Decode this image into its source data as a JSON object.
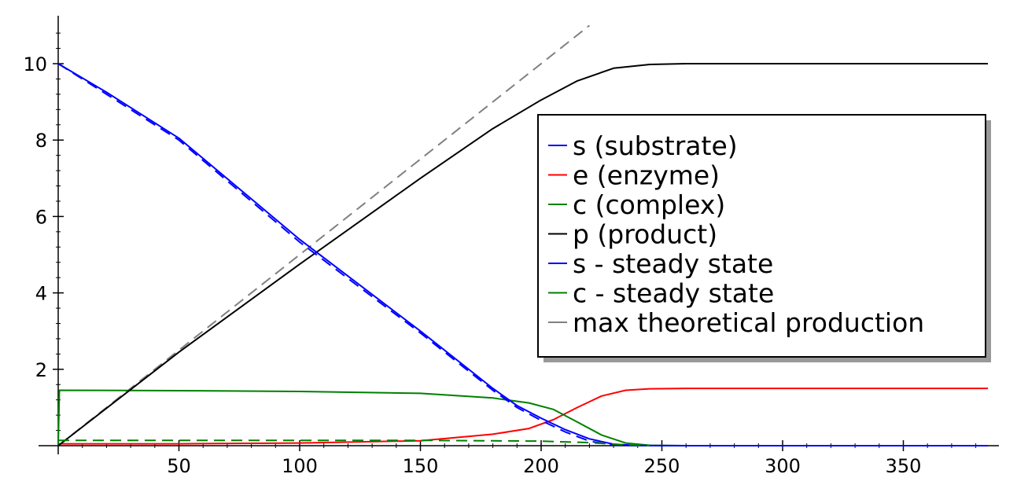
{
  "chart_data": {
    "type": "line",
    "title": "",
    "xlabel": "",
    "ylabel": "",
    "xlim": [
      0,
      390
    ],
    "ylim": [
      0,
      11.2
    ],
    "x_ticks": [
      50,
      100,
      150,
      200,
      250,
      300,
      350
    ],
    "y_ticks": [
      2,
      4,
      6,
      8,
      10
    ],
    "grid": false,
    "legend_position": "right",
    "series": [
      {
        "name": "s (substrate)",
        "color": "#0000ff",
        "style": "solid",
        "x": [
          0,
          20,
          50,
          100,
          150,
          180,
          190,
          200,
          210,
          220,
          230,
          240,
          260,
          300,
          385
        ],
        "y": [
          10,
          9.25,
          8.05,
          5.4,
          3.0,
          1.5,
          1.05,
          0.72,
          0.42,
          0.18,
          0.04,
          0.005,
          0,
          0,
          0
        ]
      },
      {
        "name": "e (enzyme)",
        "color": "#ff0000",
        "style": "solid",
        "x": [
          0,
          50,
          100,
          150,
          180,
          195,
          205,
          215,
          225,
          235,
          245,
          260,
          300,
          385
        ],
        "y": [
          0.05,
          0.05,
          0.07,
          0.13,
          0.3,
          0.45,
          0.68,
          1.0,
          1.3,
          1.45,
          1.49,
          1.5,
          1.5,
          1.5
        ]
      },
      {
        "name": "c (complex)",
        "color": "#008000",
        "style": "solid",
        "x": [
          0,
          0.5,
          50,
          100,
          150,
          180,
          195,
          205,
          215,
          225,
          235,
          245,
          260,
          300,
          385
        ],
        "y": [
          0,
          1.45,
          1.44,
          1.42,
          1.37,
          1.25,
          1.12,
          0.95,
          0.62,
          0.28,
          0.07,
          0.01,
          0,
          0,
          0
        ]
      },
      {
        "name": "p (product)",
        "color": "#000000",
        "style": "solid",
        "x": [
          0,
          50,
          100,
          150,
          180,
          200,
          215,
          230,
          245,
          260,
          300,
          385
        ],
        "y": [
          0,
          2.45,
          4.75,
          7.0,
          8.3,
          9.05,
          9.55,
          9.88,
          9.98,
          10.0,
          10.0,
          10.0
        ]
      },
      {
        "name": "s - steady state",
        "color": "#0000ff",
        "style": "dashed",
        "x": [
          0,
          20,
          50,
          100,
          150,
          180,
          190,
          200,
          210,
          220,
          230,
          240
        ],
        "y": [
          10,
          9.2,
          8.0,
          5.33,
          2.95,
          1.45,
          1.0,
          0.66,
          0.36,
          0.12,
          0.01,
          0
        ]
      },
      {
        "name": "c - steady state",
        "color": "#008000",
        "style": "dashed",
        "x": [
          0,
          50,
          100,
          150,
          200,
          220,
          235,
          245
        ],
        "y": [
          0.14,
          0.14,
          0.14,
          0.14,
          0.12,
          0.08,
          0.02,
          0
        ]
      },
      {
        "name": "max theoretical production",
        "color": "#808080",
        "style": "dashed",
        "x": [
          0,
          220
        ],
        "y": [
          0,
          11
        ]
      }
    ]
  }
}
